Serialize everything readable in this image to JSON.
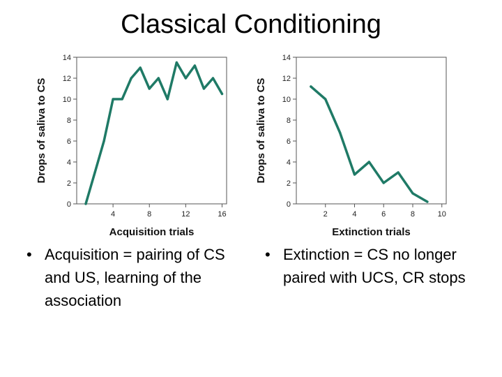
{
  "slide": {
    "title": "Classical Conditioning"
  },
  "bullets": {
    "left": {
      "marker": "•",
      "text": "Acquisition = pairing of CS and US, learning of the association"
    },
    "right": {
      "marker": "•",
      "text": "Extinction = CS no longer paired with UCS, CR stops"
    }
  },
  "chart_data": [
    {
      "type": "line",
      "title": "",
      "xlabel": "Acquisition trials",
      "ylabel": "Drops of saliva to CS",
      "x": [
        1,
        2,
        3,
        4,
        5,
        6,
        7,
        8,
        9,
        10,
        11,
        12,
        13,
        14,
        15,
        16
      ],
      "values": [
        0,
        3,
        6,
        10,
        10,
        12,
        13,
        11,
        12,
        10,
        13.5,
        12,
        13.2,
        11,
        12,
        10.5
      ],
      "xlim": [
        0,
        16.5
      ],
      "ylim": [
        0,
        14
      ],
      "xticks": [
        4,
        8,
        12,
        16
      ],
      "yticks": [
        0,
        2,
        4,
        6,
        8,
        10,
        12,
        14
      ],
      "grid": false,
      "color": "#1f7a66"
    },
    {
      "type": "line",
      "title": "",
      "xlabel": "Extinction trials",
      "ylabel": "Drops of saliva to CS",
      "x": [
        1,
        2,
        3,
        4,
        5,
        6,
        7,
        8,
        9
      ],
      "values": [
        11.2,
        10,
        6.8,
        2.8,
        4,
        2,
        3,
        1,
        0.2
      ],
      "xlim": [
        0,
        10.3
      ],
      "ylim": [
        0,
        14
      ],
      "xticks": [
        2,
        4,
        6,
        8,
        10
      ],
      "yticks": [
        0,
        2,
        4,
        6,
        8,
        10,
        12,
        14
      ],
      "grid": false,
      "color": "#1f7a66"
    }
  ]
}
